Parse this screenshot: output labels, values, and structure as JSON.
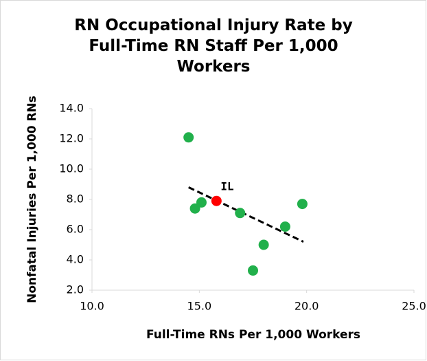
{
  "chart_data": {
    "type": "scatter",
    "title": "RN Occupational Injury Rate by Full-Time RN Staff Per 1,000 Workers",
    "x_label": "Full-Time RNs Per 1,000 Workers",
    "y_label": "Nonfatal Injuries Per 1,000 RNs",
    "x": [
      14.5,
      14.8,
      15.1,
      15.8,
      16.9,
      18.0,
      17.5,
      19.0,
      19.8
    ],
    "values": [
      12.1,
      7.4,
      7.8,
      7.9,
      7.1,
      5.0,
      3.3,
      6.2,
      7.7
    ],
    "colors": [
      "#21b04b",
      "#21b04b",
      "#21b04b",
      "#ff0000",
      "#21b04b",
      "#21b04b",
      "#21b04b",
      "#21b04b",
      "#21b04b"
    ],
    "annotation": {
      "text": "IL",
      "index": 3
    },
    "trendline": {
      "x": [
        14.5,
        19.85
      ],
      "values": [
        8.8,
        5.2
      ],
      "color": "#000000"
    },
    "xlim": [
      10,
      25
    ],
    "xticks": [
      {
        "value": 10,
        "label": "10.0"
      },
      {
        "value": 15,
        "label": "15.0"
      },
      {
        "value": 20,
        "label": "20.0"
      },
      {
        "value": 25,
        "label": "25.0"
      }
    ],
    "ylim": [
      2,
      14
    ],
    "yticks": [
      {
        "value": 2,
        "label": "2.0"
      },
      {
        "value": 4,
        "label": "4.0"
      },
      {
        "value": 6,
        "label": "6.0"
      },
      {
        "value": 8,
        "label": "8.0"
      },
      {
        "value": 10,
        "label": "10.0"
      },
      {
        "value": 12,
        "label": "12.0"
      },
      {
        "value": 14,
        "label": "14.0"
      }
    ],
    "grid": false
  }
}
